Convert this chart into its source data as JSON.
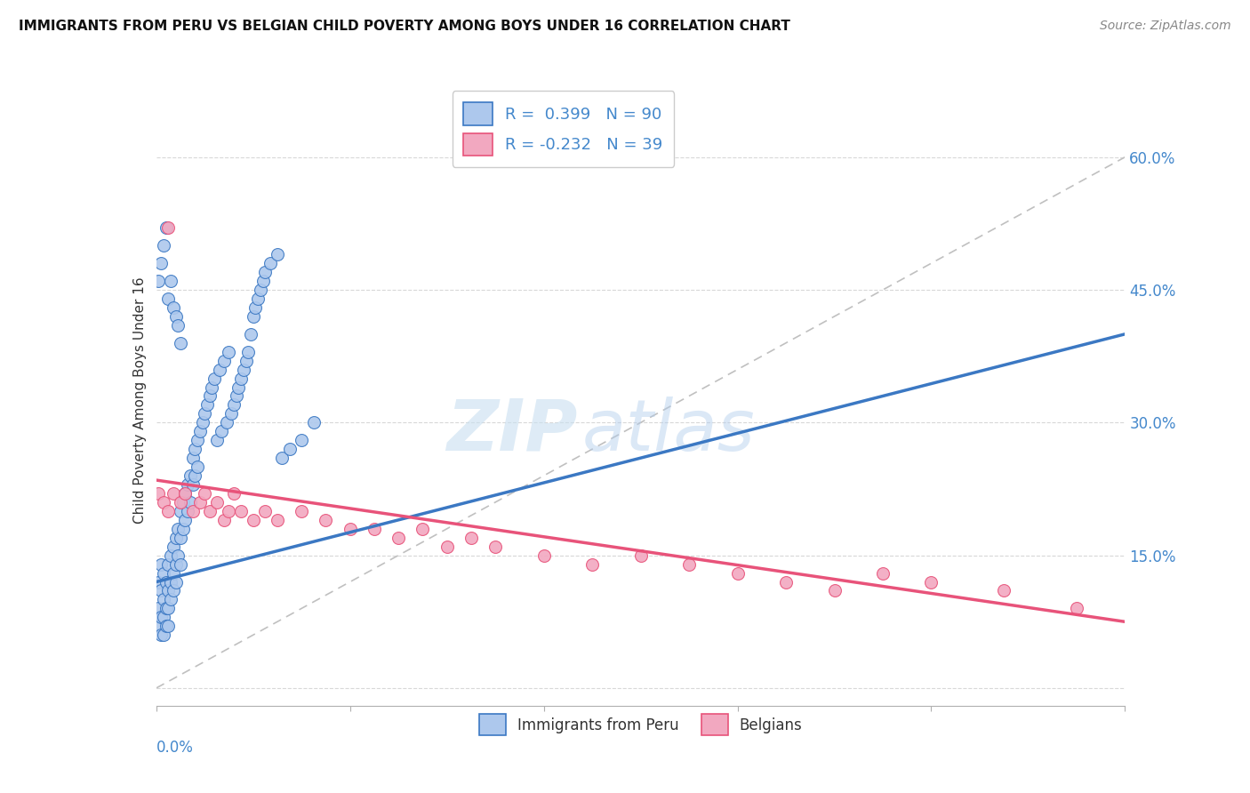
{
  "title": "IMMIGRANTS FROM PERU VS BELGIAN CHILD POVERTY AMONG BOYS UNDER 16 CORRELATION CHART",
  "source": "Source: ZipAtlas.com",
  "ylabel": "Child Poverty Among Boys Under 16",
  "ytick_vals": [
    0.0,
    0.15,
    0.3,
    0.45,
    0.6
  ],
  "ytick_labels": [
    "",
    "15.0%",
    "30.0%",
    "45.0%",
    "60.0%"
  ],
  "xrange": [
    0.0,
    0.4
  ],
  "yrange": [
    -0.02,
    0.67
  ],
  "legend1_label": "R =  0.399   N = 90",
  "legend2_label": "R = -0.232   N = 39",
  "series1_color": "#adc8ed",
  "series2_color": "#f2a8c0",
  "line1_color": "#3b78c3",
  "line2_color": "#e8537a",
  "legend_label1": "Immigrants from Peru",
  "legend_label2": "Belgians",
  "blue_scatter_x": [
    0.001,
    0.001,
    0.001,
    0.002,
    0.002,
    0.002,
    0.002,
    0.003,
    0.003,
    0.003,
    0.003,
    0.004,
    0.004,
    0.004,
    0.005,
    0.005,
    0.005,
    0.005,
    0.006,
    0.006,
    0.006,
    0.007,
    0.007,
    0.007,
    0.008,
    0.008,
    0.008,
    0.009,
    0.009,
    0.01,
    0.01,
    0.01,
    0.011,
    0.011,
    0.012,
    0.012,
    0.013,
    0.013,
    0.014,
    0.014,
    0.015,
    0.015,
    0.016,
    0.016,
    0.017,
    0.017,
    0.018,
    0.019,
    0.02,
    0.021,
    0.022,
    0.023,
    0.024,
    0.025,
    0.026,
    0.027,
    0.028,
    0.029,
    0.03,
    0.031,
    0.032,
    0.033,
    0.034,
    0.035,
    0.036,
    0.037,
    0.038,
    0.039,
    0.04,
    0.041,
    0.042,
    0.043,
    0.044,
    0.045,
    0.047,
    0.05,
    0.052,
    0.055,
    0.06,
    0.065,
    0.001,
    0.002,
    0.003,
    0.004,
    0.005,
    0.006,
    0.007,
    0.008,
    0.009,
    0.01
  ],
  "blue_scatter_y": [
    0.12,
    0.09,
    0.07,
    0.11,
    0.14,
    0.08,
    0.06,
    0.13,
    0.1,
    0.08,
    0.06,
    0.12,
    0.09,
    0.07,
    0.14,
    0.11,
    0.09,
    0.07,
    0.15,
    0.12,
    0.1,
    0.16,
    0.13,
    0.11,
    0.17,
    0.14,
    0.12,
    0.18,
    0.15,
    0.2,
    0.17,
    0.14,
    0.21,
    0.18,
    0.22,
    0.19,
    0.23,
    0.2,
    0.24,
    0.21,
    0.26,
    0.23,
    0.27,
    0.24,
    0.28,
    0.25,
    0.29,
    0.3,
    0.31,
    0.32,
    0.33,
    0.34,
    0.35,
    0.28,
    0.36,
    0.29,
    0.37,
    0.3,
    0.38,
    0.31,
    0.32,
    0.33,
    0.34,
    0.35,
    0.36,
    0.37,
    0.38,
    0.4,
    0.42,
    0.43,
    0.44,
    0.45,
    0.46,
    0.47,
    0.48,
    0.49,
    0.26,
    0.27,
    0.28,
    0.3,
    0.46,
    0.48,
    0.5,
    0.52,
    0.44,
    0.46,
    0.43,
    0.42,
    0.41,
    0.39
  ],
  "pink_scatter_x": [
    0.001,
    0.003,
    0.005,
    0.007,
    0.01,
    0.012,
    0.015,
    0.018,
    0.02,
    0.022,
    0.025,
    0.028,
    0.03,
    0.032,
    0.035,
    0.04,
    0.045,
    0.05,
    0.06,
    0.07,
    0.08,
    0.09,
    0.1,
    0.11,
    0.12,
    0.13,
    0.14,
    0.16,
    0.18,
    0.2,
    0.22,
    0.24,
    0.26,
    0.28,
    0.3,
    0.32,
    0.35,
    0.38,
    0.005
  ],
  "pink_scatter_y": [
    0.22,
    0.21,
    0.2,
    0.22,
    0.21,
    0.22,
    0.2,
    0.21,
    0.22,
    0.2,
    0.21,
    0.19,
    0.2,
    0.22,
    0.2,
    0.19,
    0.2,
    0.19,
    0.2,
    0.19,
    0.18,
    0.18,
    0.17,
    0.18,
    0.16,
    0.17,
    0.16,
    0.15,
    0.14,
    0.15,
    0.14,
    0.13,
    0.12,
    0.11,
    0.13,
    0.12,
    0.11,
    0.09,
    0.52
  ],
  "ref_line_x": [
    0.0,
    0.4
  ],
  "ref_line_y": [
    0.0,
    0.6
  ],
  "blue_trend_x": [
    0.0,
    0.4
  ],
  "blue_trend_y": [
    0.12,
    0.4
  ],
  "pink_trend_x": [
    0.0,
    0.4
  ],
  "pink_trend_y": [
    0.235,
    0.075
  ]
}
